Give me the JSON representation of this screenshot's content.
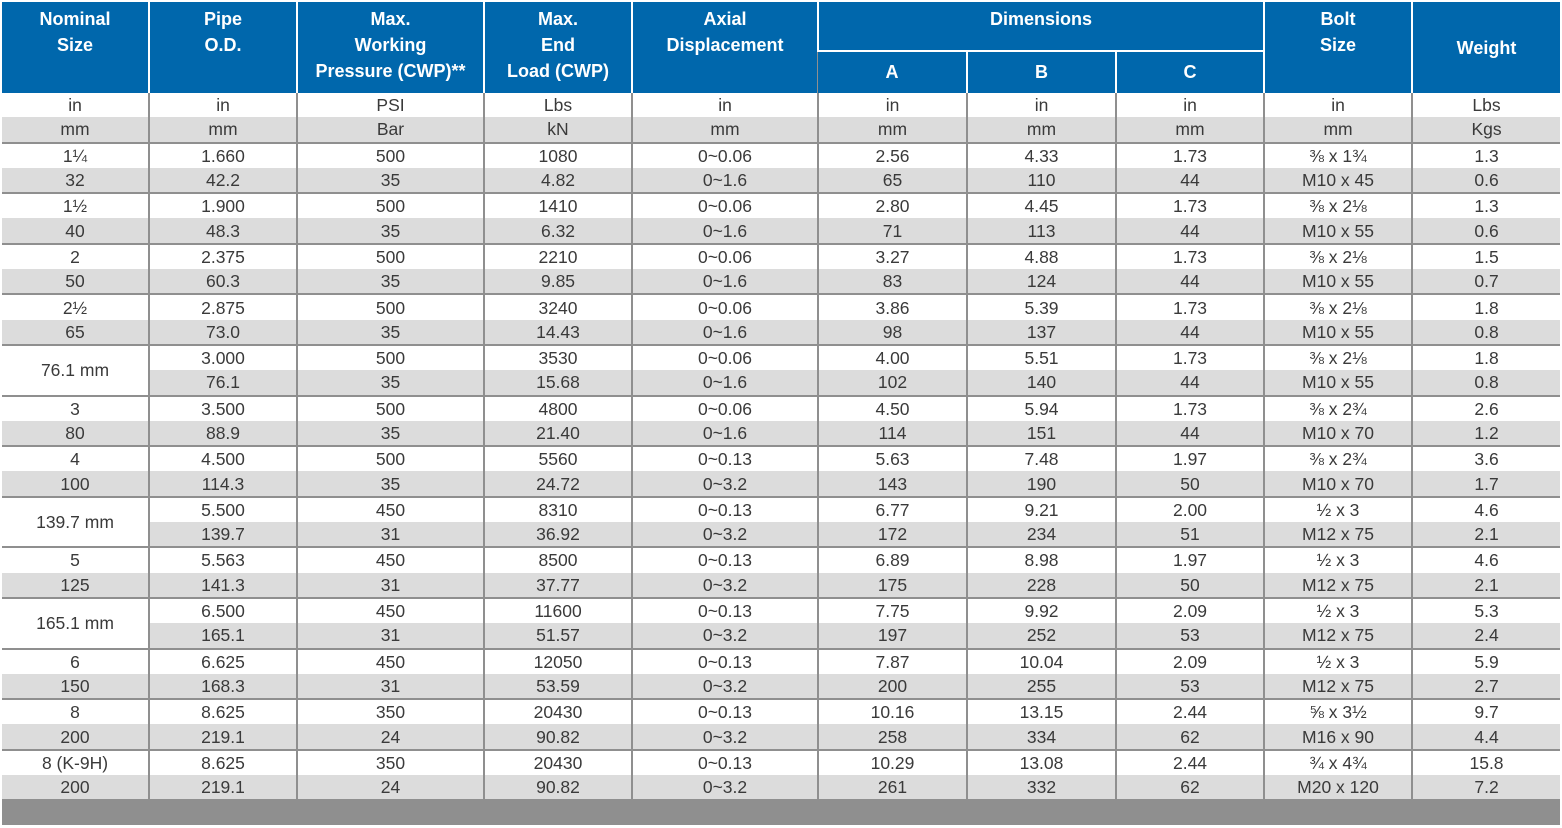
{
  "header": {
    "nominal_size": [
      "Nominal",
      "Size"
    ],
    "pipe_od": [
      "Pipe",
      "O.D."
    ],
    "max_working_pressure": [
      "Max.",
      "Working",
      "Pressure (CWP)**"
    ],
    "max_end_load": [
      "Max.",
      "End",
      "Load (CWP)"
    ],
    "axial_displacement": [
      "Axial",
      "Displacement"
    ],
    "dimensions": "Dimensions",
    "dim_a": "A",
    "dim_b": "B",
    "dim_c": "C",
    "bolt_size": [
      "Bolt",
      "Size"
    ],
    "weight": "Weight"
  },
  "units_imperial": [
    "in",
    "in",
    "PSI",
    "Lbs",
    "in",
    "in",
    "in",
    "in",
    "in",
    "Lbs"
  ],
  "units_metric": [
    "mm",
    "mm",
    "Bar",
    "kN",
    "mm",
    "mm",
    "mm",
    "mm",
    "mm",
    "Kgs"
  ],
  "groups": [
    {
      "nominal": [
        "1¼",
        "32"
      ],
      "imperial": [
        "1.660",
        "500",
        "1080",
        "0~0.06",
        "2.56",
        "4.33",
        "1.73",
        "⅜ x 1¾",
        "1.3"
      ],
      "metric": [
        "42.2",
        "35",
        "4.82",
        "0~1.6",
        "65",
        "110",
        "44",
        "M10 x 45",
        "0.6"
      ]
    },
    {
      "nominal": [
        "1½",
        "40"
      ],
      "imperial": [
        "1.900",
        "500",
        "1410",
        "0~0.06",
        "2.80",
        "4.45",
        "1.73",
        "⅜ x 2⅛",
        "1.3"
      ],
      "metric": [
        "48.3",
        "35",
        "6.32",
        "0~1.6",
        "71",
        "113",
        "44",
        "M10 x 55",
        "0.6"
      ]
    },
    {
      "nominal": [
        "2",
        "50"
      ],
      "imperial": [
        "2.375",
        "500",
        "2210",
        "0~0.06",
        "3.27",
        "4.88",
        "1.73",
        "⅜ x 2⅛",
        "1.5"
      ],
      "metric": [
        "60.3",
        "35",
        "9.85",
        "0~1.6",
        "83",
        "124",
        "44",
        "M10 x 55",
        "0.7"
      ]
    },
    {
      "nominal": [
        "2½",
        "65"
      ],
      "imperial": [
        "2.875",
        "500",
        "3240",
        "0~0.06",
        "3.86",
        "5.39",
        "1.73",
        "⅜ x 2⅛",
        "1.8"
      ],
      "metric": [
        "73.0",
        "35",
        "14.43",
        "0~1.6",
        "98",
        "137",
        "44",
        "M10 x 55",
        "0.8"
      ]
    },
    {
      "nominal_merged": "76.1 mm",
      "imperial": [
        "3.000",
        "500",
        "3530",
        "0~0.06",
        "4.00",
        "5.51",
        "1.73",
        "⅜ x 2⅛",
        "1.8"
      ],
      "metric": [
        "76.1",
        "35",
        "15.68",
        "0~1.6",
        "102",
        "140",
        "44",
        "M10 x 55",
        "0.8"
      ]
    },
    {
      "nominal": [
        "3",
        "80"
      ],
      "imperial": [
        "3.500",
        "500",
        "4800",
        "0~0.06",
        "4.50",
        "5.94",
        "1.73",
        "⅜ x 2¾",
        "2.6"
      ],
      "metric": [
        "88.9",
        "35",
        "21.40",
        "0~1.6",
        "114",
        "151",
        "44",
        "M10 x 70",
        "1.2"
      ]
    },
    {
      "nominal": [
        "4",
        "100"
      ],
      "imperial": [
        "4.500",
        "500",
        "5560",
        "0~0.13",
        "5.63",
        "7.48",
        "1.97",
        "⅜ x 2¾",
        "3.6"
      ],
      "metric": [
        "114.3",
        "35",
        "24.72",
        "0~3.2",
        "143",
        "190",
        "50",
        "M10 x 70",
        "1.7"
      ]
    },
    {
      "nominal_merged": "139.7 mm",
      "imperial": [
        "5.500",
        "450",
        "8310",
        "0~0.13",
        "6.77",
        "9.21",
        "2.00",
        "½ x 3",
        "4.6"
      ],
      "metric": [
        "139.7",
        "31",
        "36.92",
        "0~3.2",
        "172",
        "234",
        "51",
        "M12 x 75",
        "2.1"
      ]
    },
    {
      "nominal": [
        "5",
        "125"
      ],
      "imperial": [
        "5.563",
        "450",
        "8500",
        "0~0.13",
        "6.89",
        "8.98",
        "1.97",
        "½ x 3",
        "4.6"
      ],
      "metric": [
        "141.3",
        "31",
        "37.77",
        "0~3.2",
        "175",
        "228",
        "50",
        "M12 x 75",
        "2.1"
      ]
    },
    {
      "nominal_merged": "165.1 mm",
      "imperial": [
        "6.500",
        "450",
        "11600",
        "0~0.13",
        "7.75",
        "9.92",
        "2.09",
        "½ x 3",
        "5.3"
      ],
      "metric": [
        "165.1",
        "31",
        "51.57",
        "0~3.2",
        "197",
        "252",
        "53",
        "M12 x 75",
        "2.4"
      ]
    },
    {
      "nominal": [
        "6",
        "150"
      ],
      "imperial": [
        "6.625",
        "450",
        "12050",
        "0~0.13",
        "7.87",
        "10.04",
        "2.09",
        "½ x 3",
        "5.9"
      ],
      "metric": [
        "168.3",
        "31",
        "53.59",
        "0~3.2",
        "200",
        "255",
        "53",
        "M12 x 75",
        "2.7"
      ]
    },
    {
      "nominal": [
        "8",
        "200"
      ],
      "imperial": [
        "8.625",
        "350",
        "20430",
        "0~0.13",
        "10.16",
        "13.15",
        "2.44",
        "⅝ x 3½",
        "9.7"
      ],
      "metric": [
        "219.1",
        "24",
        "90.82",
        "0~3.2",
        "258",
        "334",
        "62",
        "M16 x 90",
        "4.4"
      ]
    },
    {
      "nominal": [
        "8 (K-9H)",
        "200"
      ],
      "imperial": [
        "8.625",
        "350",
        "20430",
        "0~0.13",
        "10.29",
        "13.08",
        "2.44",
        "¾ x 4¾",
        "15.8"
      ],
      "metric": [
        "219.1",
        "24",
        "90.82",
        "0~3.2",
        "261",
        "332",
        "62",
        "M20 x 120",
        "7.2"
      ]
    }
  ]
}
